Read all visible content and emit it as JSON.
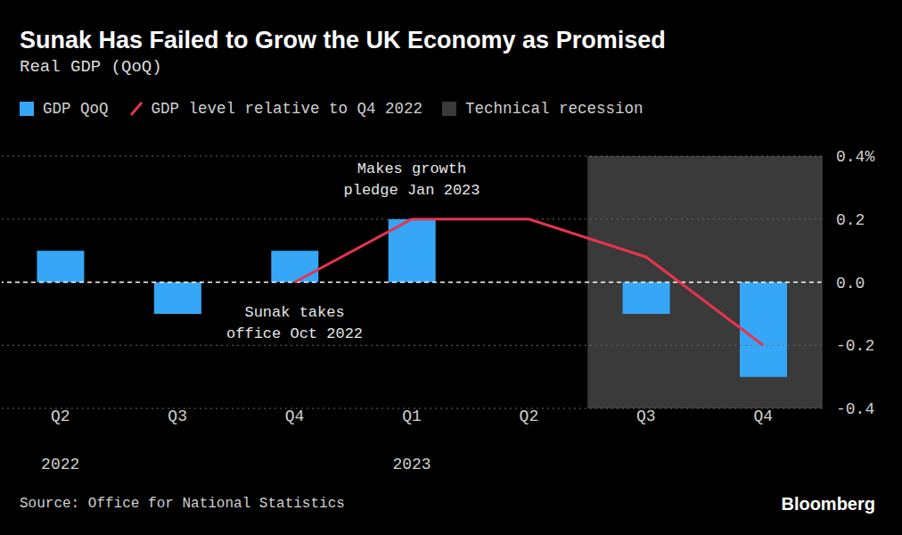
{
  "chart_data": {
    "type": "bar",
    "title": "Sunak Has Failed to Grow the UK Economy as Promised",
    "subtitle": "Real GDP (QoQ)",
    "categories": [
      "Q2\n2022",
      "Q3",
      "Q4",
      "Q1\n2023",
      "Q2",
      "Q3",
      "Q4"
    ],
    "series": [
      {
        "name": "GDP QoQ",
        "type": "bar",
        "color": "#36a6f7",
        "values": [
          0.1,
          -0.1,
          0.1,
          0.2,
          0.0,
          -0.1,
          -0.3
        ]
      },
      {
        "name": "GDP level relative to Q4 2022",
        "type": "line",
        "color": "#e8344e",
        "values": [
          null,
          null,
          0,
          0.2,
          0.2,
          0.08,
          -0.2
        ]
      }
    ],
    "shaded_ranges": [
      {
        "name": "Technical recession",
        "color": "#3a3a3a",
        "from": 5,
        "to": 6
      }
    ],
    "ylim": [
      -0.4,
      0.4
    ],
    "yticks": [
      {
        "value": 0.4,
        "label": "0.4%"
      },
      0.2,
      {
        "value": 0,
        "label": "0.0"
      },
      -0.2,
      -0.4
    ],
    "grid": true,
    "annotations": [
      {
        "text": [
          "Makes growth",
          "pledge Jan 2023"
        ],
        "at": 3,
        "position": "top"
      },
      {
        "text": [
          "Sunak takes",
          "office Oct 2022"
        ],
        "at": 2,
        "position": "bottom"
      }
    ],
    "source": "Source: Office for National Statistics",
    "logo": "Bloomberg"
  }
}
